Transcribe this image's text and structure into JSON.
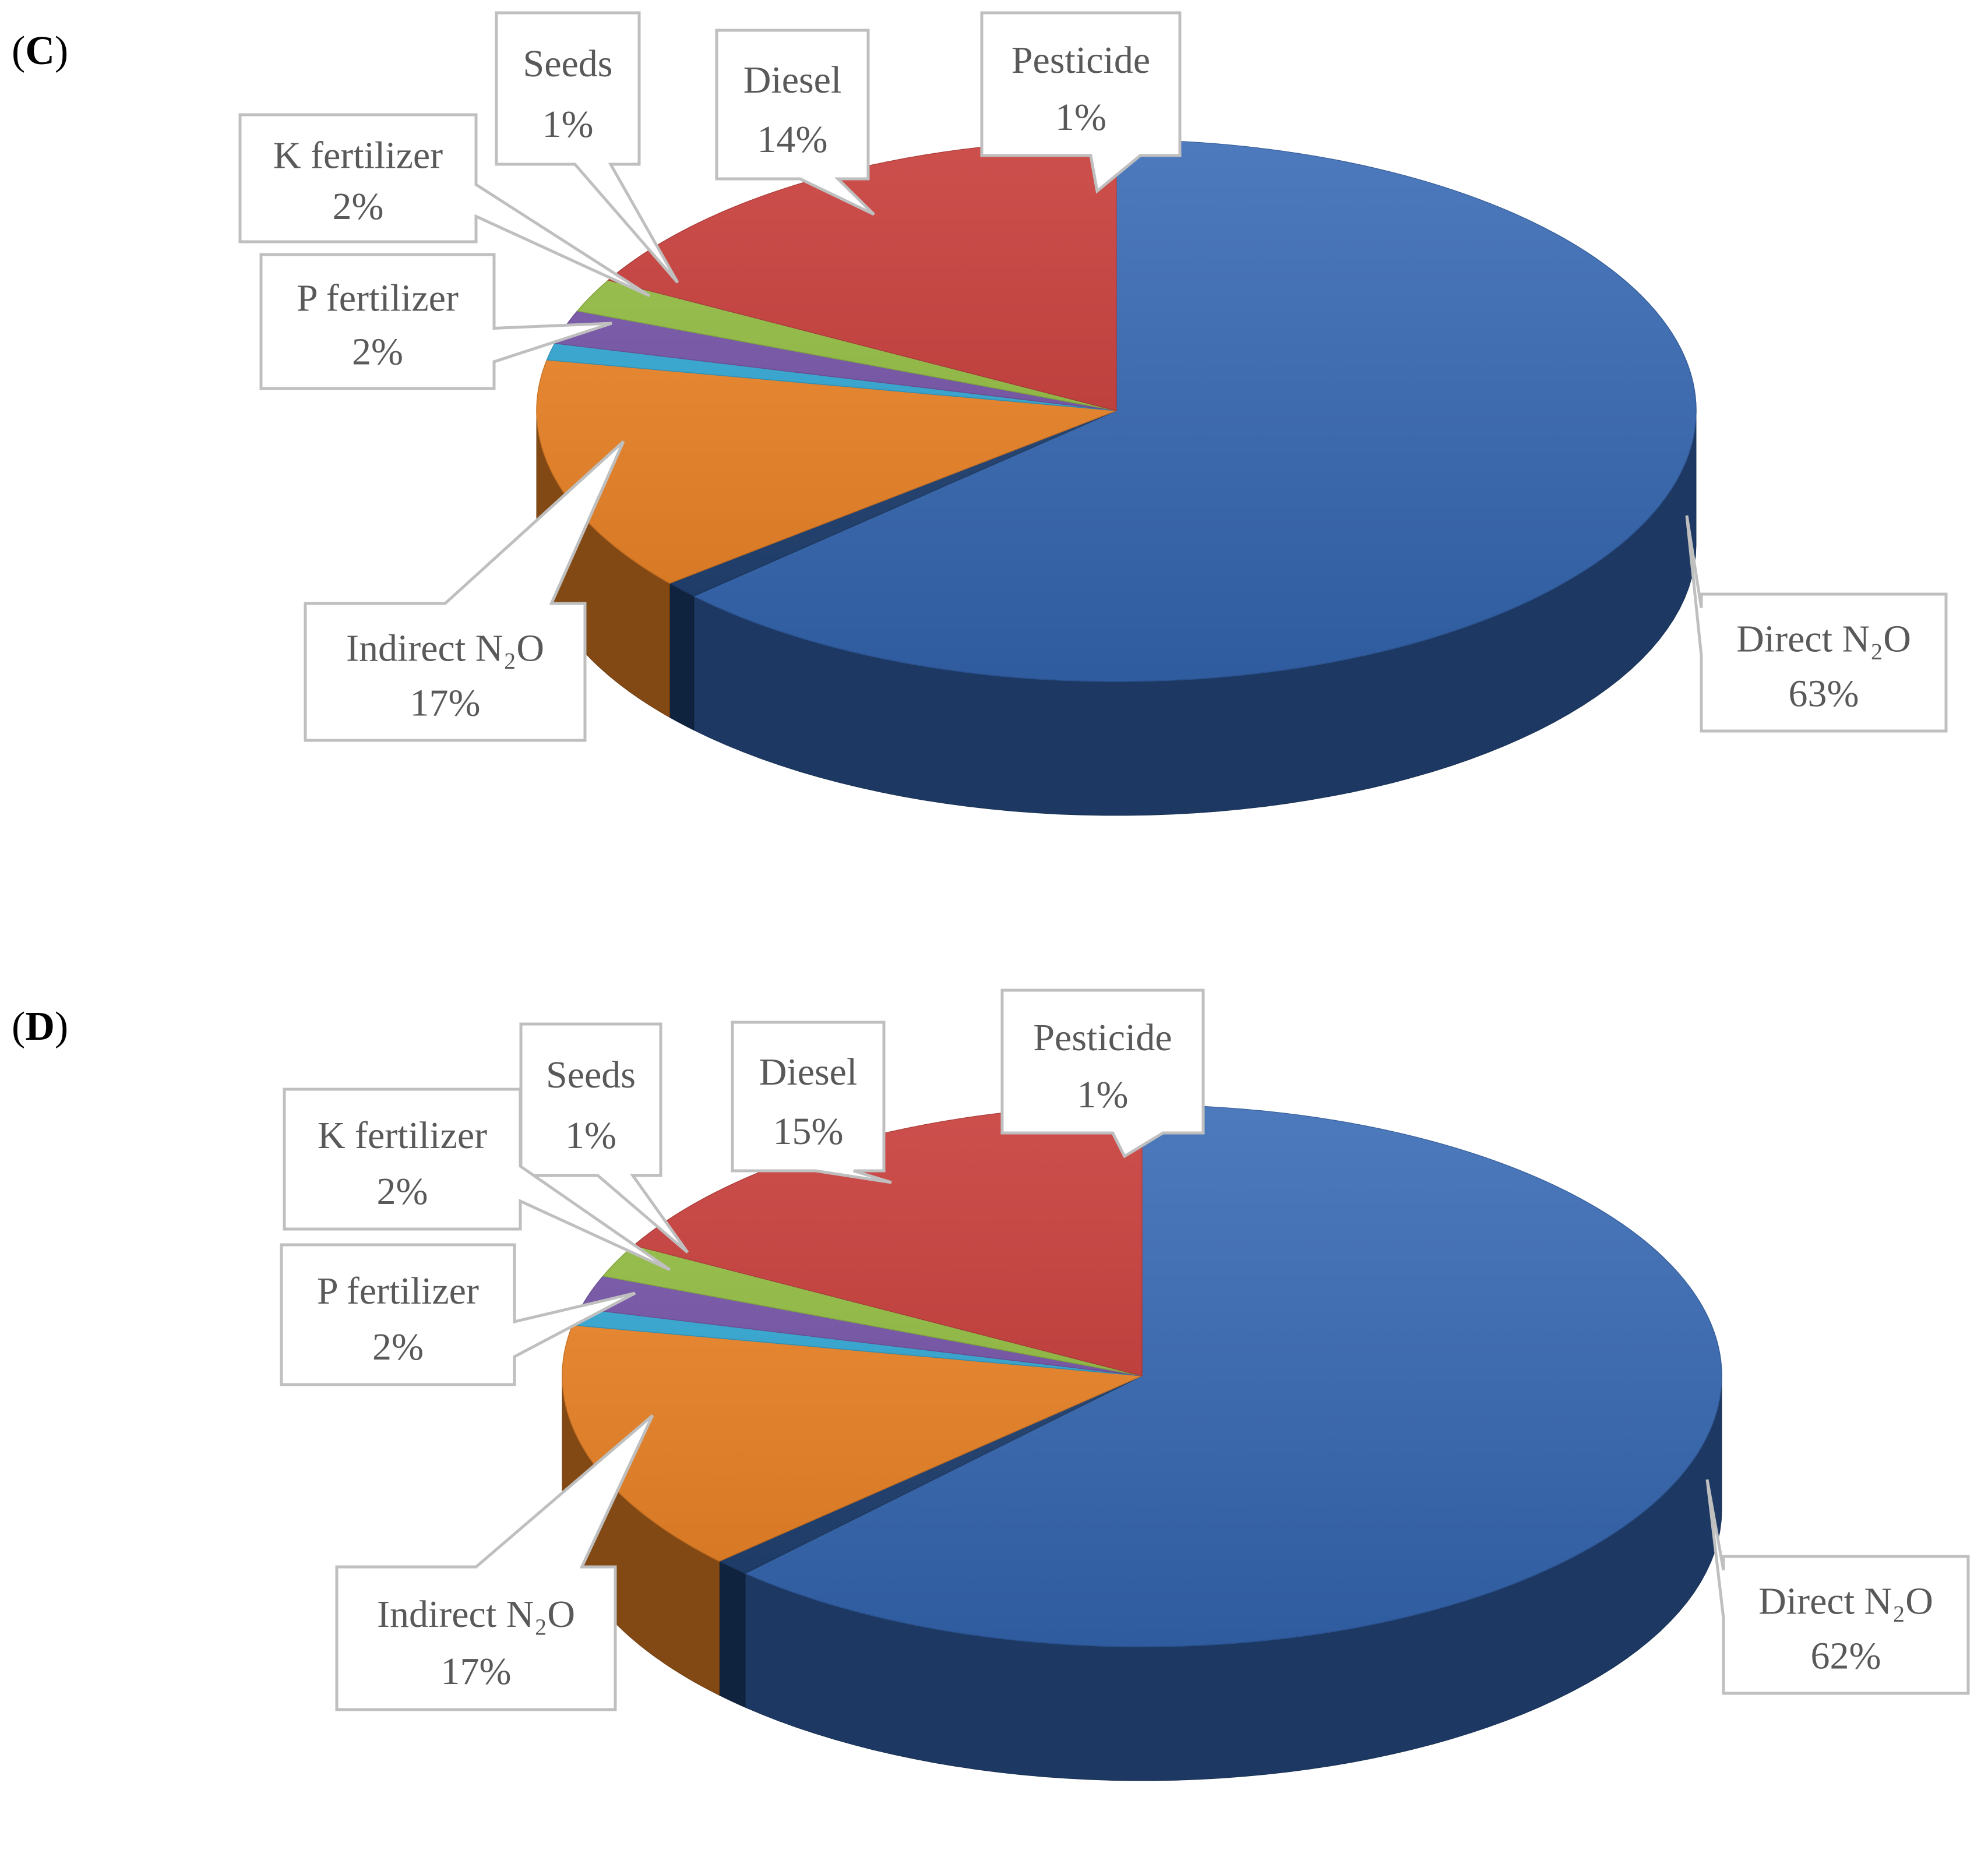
{
  "chart_data": [
    {
      "type": "pie",
      "panel_label": "C",
      "slices": [
        {
          "name": "Direct N₂O",
          "value_label": "63%",
          "value": 63,
          "color": "#3568b4"
        },
        {
          "name": "Pesticide",
          "value_label": "1%",
          "value": 1,
          "color": "#1d3f70"
        },
        {
          "name": "Diesel",
          "value_label": "14%",
          "value": 14,
          "color": "#ef8424"
        },
        {
          "name": "Seeds",
          "value_label": "1%",
          "value": 1,
          "color": "#2fa8d6"
        },
        {
          "name": "K fertilizer",
          "value_label": "2%",
          "value": 2,
          "color": "#7451a8"
        },
        {
          "name": "P fertilizer",
          "value_label": "2%",
          "value": 2,
          "color": "#92bd3f"
        },
        {
          "name": "Indirect N₂O",
          "value_label": "17%",
          "value": 17,
          "color": "#c73835"
        }
      ],
      "style": "3d-pie"
    },
    {
      "type": "pie",
      "panel_label": "D",
      "slices": [
        {
          "name": "Direct N₂O",
          "value_label": "62%",
          "value": 62,
          "color": "#3568b4"
        },
        {
          "name": "Pesticide",
          "value_label": "1%",
          "value": 1,
          "color": "#1d3f70"
        },
        {
          "name": "Diesel",
          "value_label": "15%",
          "value": 15,
          "color": "#ef8424"
        },
        {
          "name": "Seeds",
          "value_label": "1%",
          "value": 1,
          "color": "#2fa8d6"
        },
        {
          "name": "K fertilizer",
          "value_label": "2%",
          "value": 2,
          "color": "#7451a8"
        },
        {
          "name": "P fertilizer",
          "value_label": "2%",
          "value": 2,
          "color": "#92bd3f"
        },
        {
          "name": "Indirect N₂O",
          "value_label": "17%",
          "value": 17,
          "color": "#c73835"
        }
      ],
      "style": "3d-pie"
    }
  ]
}
